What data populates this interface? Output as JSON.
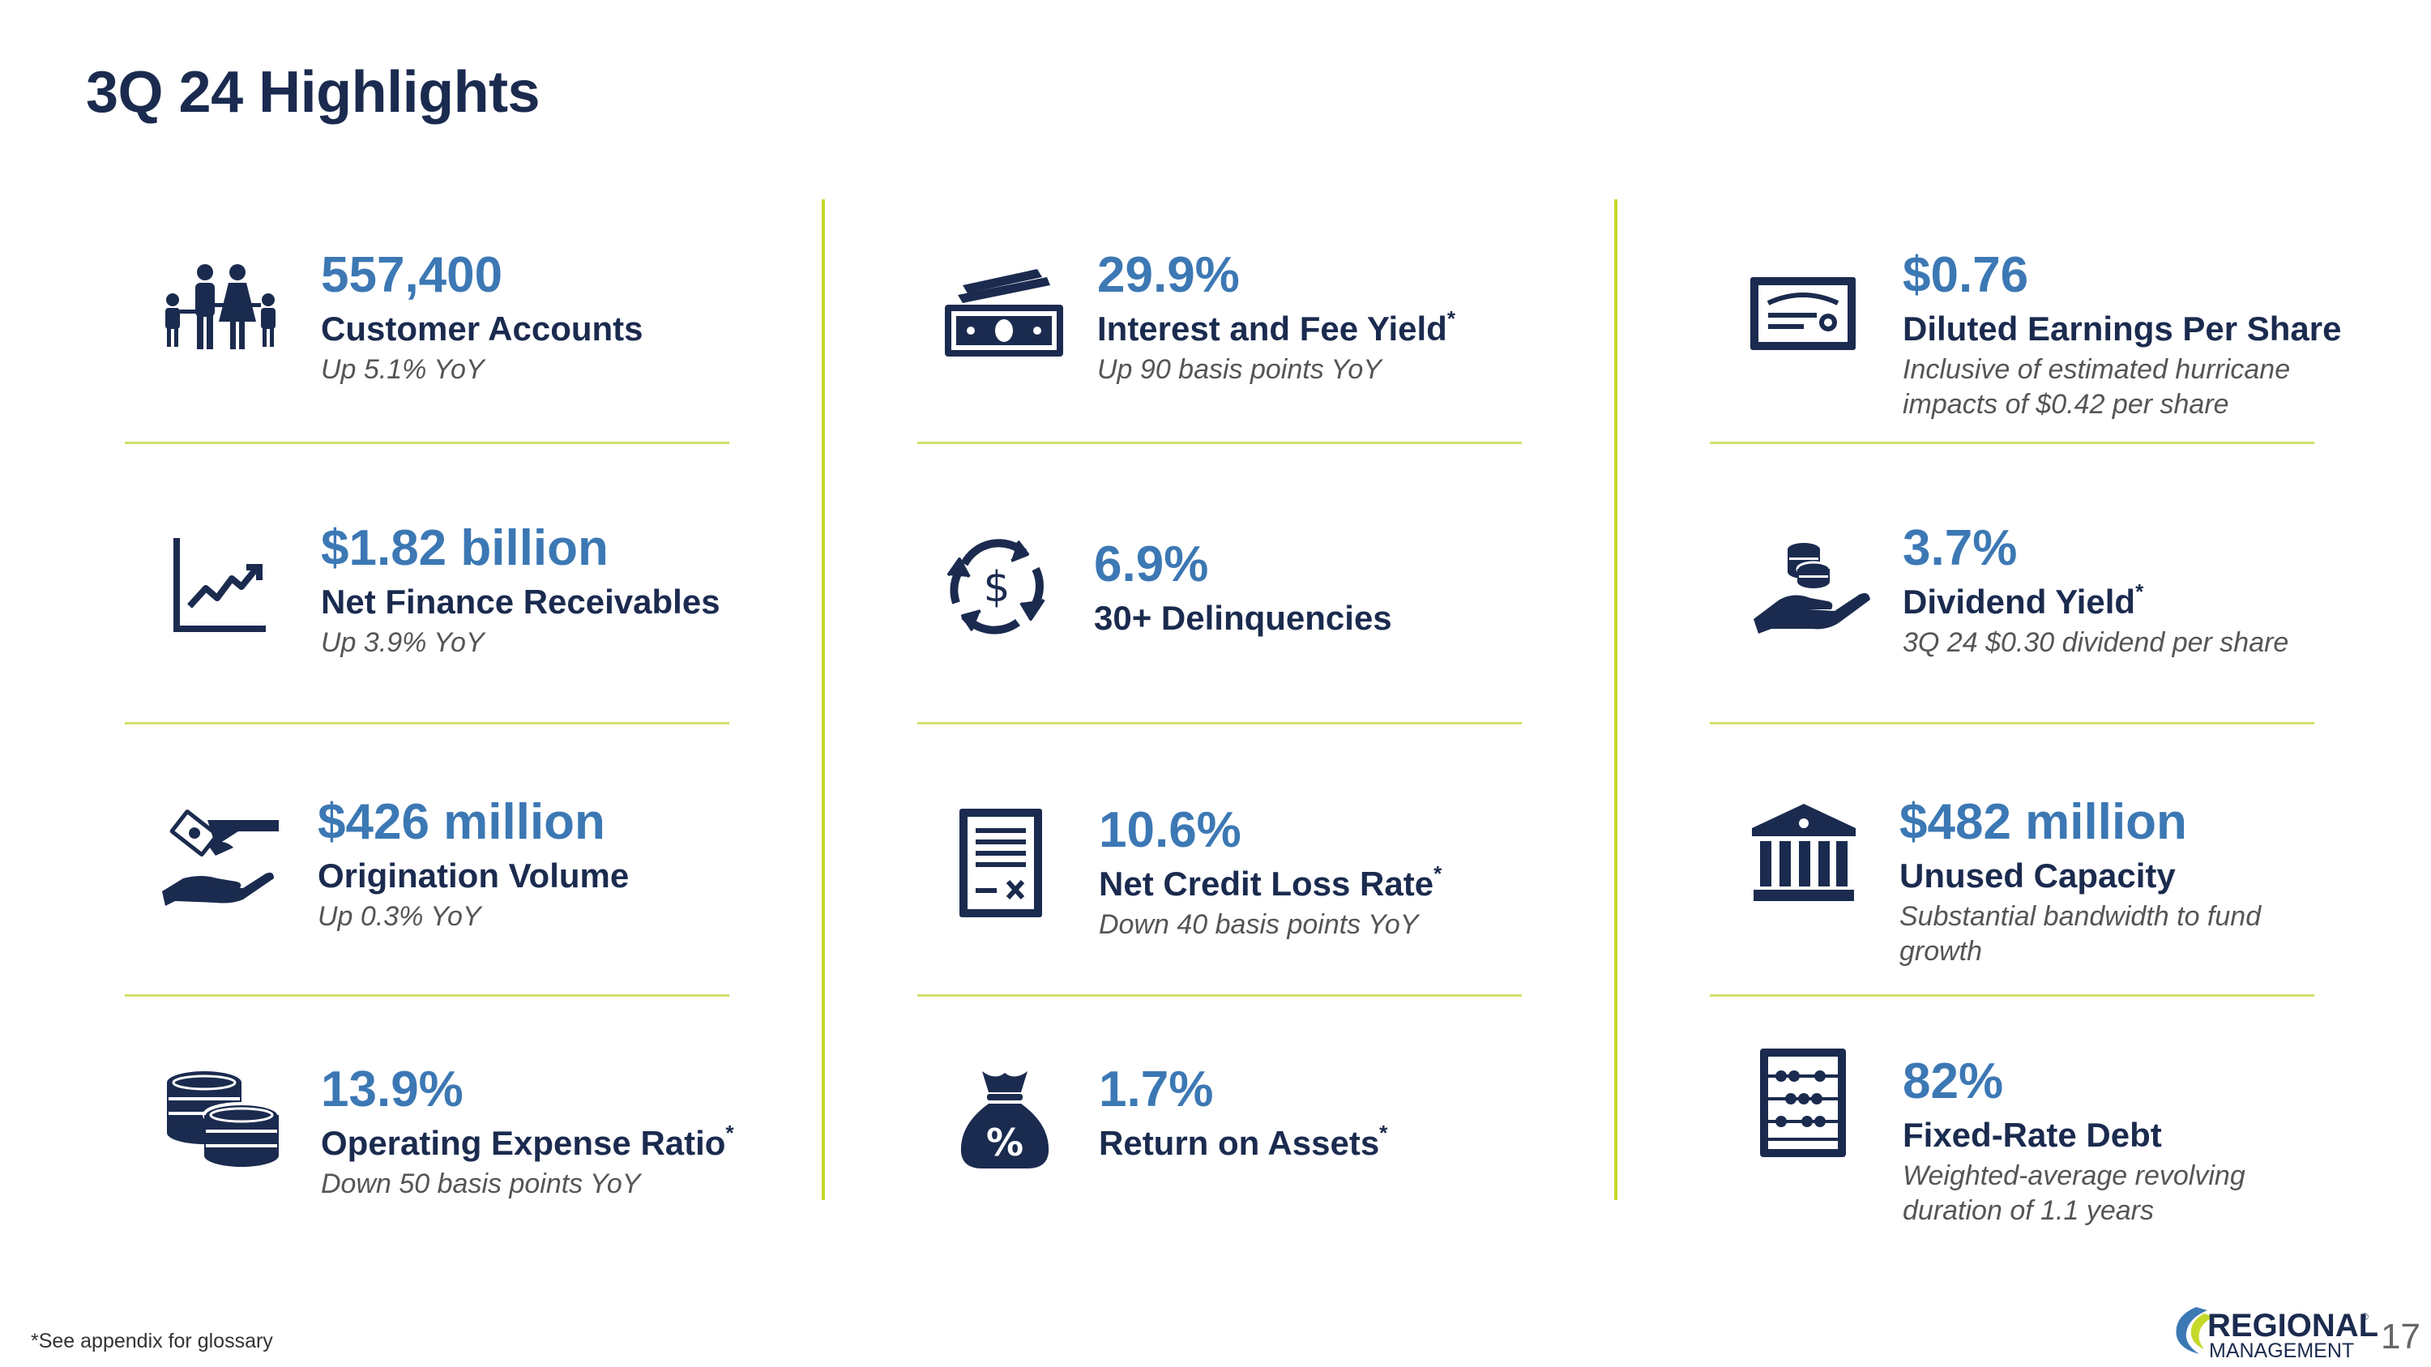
{
  "page": {
    "title": "3Q 24 Highlights",
    "footnote": "*See appendix for glossary",
    "page_number": "17"
  },
  "logo": {
    "line1": "REGIONAL",
    "line2": "MANAGEMENT",
    "registered": "®"
  },
  "colors": {
    "navy": "#1b2b4f",
    "blue": "#3c78b4",
    "divider": "#c5d92a",
    "icon": "#1b2b4f"
  },
  "kpis": [
    {
      "icon": "family-icon",
      "value": "557,400",
      "label": "Customer Accounts",
      "asterisk": "",
      "sub": "Up 5.1% YoY"
    },
    {
      "icon": "growth-chart-icon",
      "value": "$1.82 billion",
      "label": "Net Finance Receivables",
      "asterisk": "",
      "sub": "Up 3.9% YoY"
    },
    {
      "icon": "money-hand-icon",
      "value": "$426 million",
      "label": "Origination Volume",
      "asterisk": "",
      "sub": "Up 0.3% YoY"
    },
    {
      "icon": "coins-stack-icon",
      "value": "13.9%",
      "label": "Operating Expense Ratio",
      "asterisk": "*",
      "sub": "Down 50 basis points YoY"
    },
    {
      "icon": "cash-bills-icon",
      "value": "29.9%",
      "label": "Interest and Fee Yield",
      "asterisk": "*",
      "sub": "Up 90 basis points YoY"
    },
    {
      "icon": "dollar-cycle-icon",
      "value": "6.9%",
      "label": "30+ Delinquencies",
      "asterisk": "",
      "sub": ""
    },
    {
      "icon": "document-calculator-icon",
      "value": "10.6%",
      "label": "Net Credit Loss Rate",
      "asterisk": "*",
      "sub": "Down 40 basis points YoY"
    },
    {
      "icon": "percent-money-bag-icon",
      "value": "1.7%",
      "label": "Return on Assets",
      "asterisk": "*",
      "sub": ""
    },
    {
      "icon": "certificate-icon",
      "value": "$0.76",
      "label": "Diluted Earnings Per Share",
      "asterisk": "",
      "sub": "Inclusive of estimated hurricane impacts of $0.42 per share"
    },
    {
      "icon": "coins-hand-icon",
      "value": "3.7%",
      "label": "Dividend Yield",
      "asterisk": "*",
      "sub": "3Q 24 $0.30 dividend per share"
    },
    {
      "icon": "bank-building-icon",
      "value": "$482 million",
      "label": "Unused Capacity",
      "asterisk": "",
      "sub": "Substantial bandwidth to fund growth"
    },
    {
      "icon": "abacus-icon",
      "value": "82%",
      "label": "Fixed-Rate Debt",
      "asterisk": "",
      "sub": "Weighted-average revolving duration of 1.1 years"
    }
  ]
}
